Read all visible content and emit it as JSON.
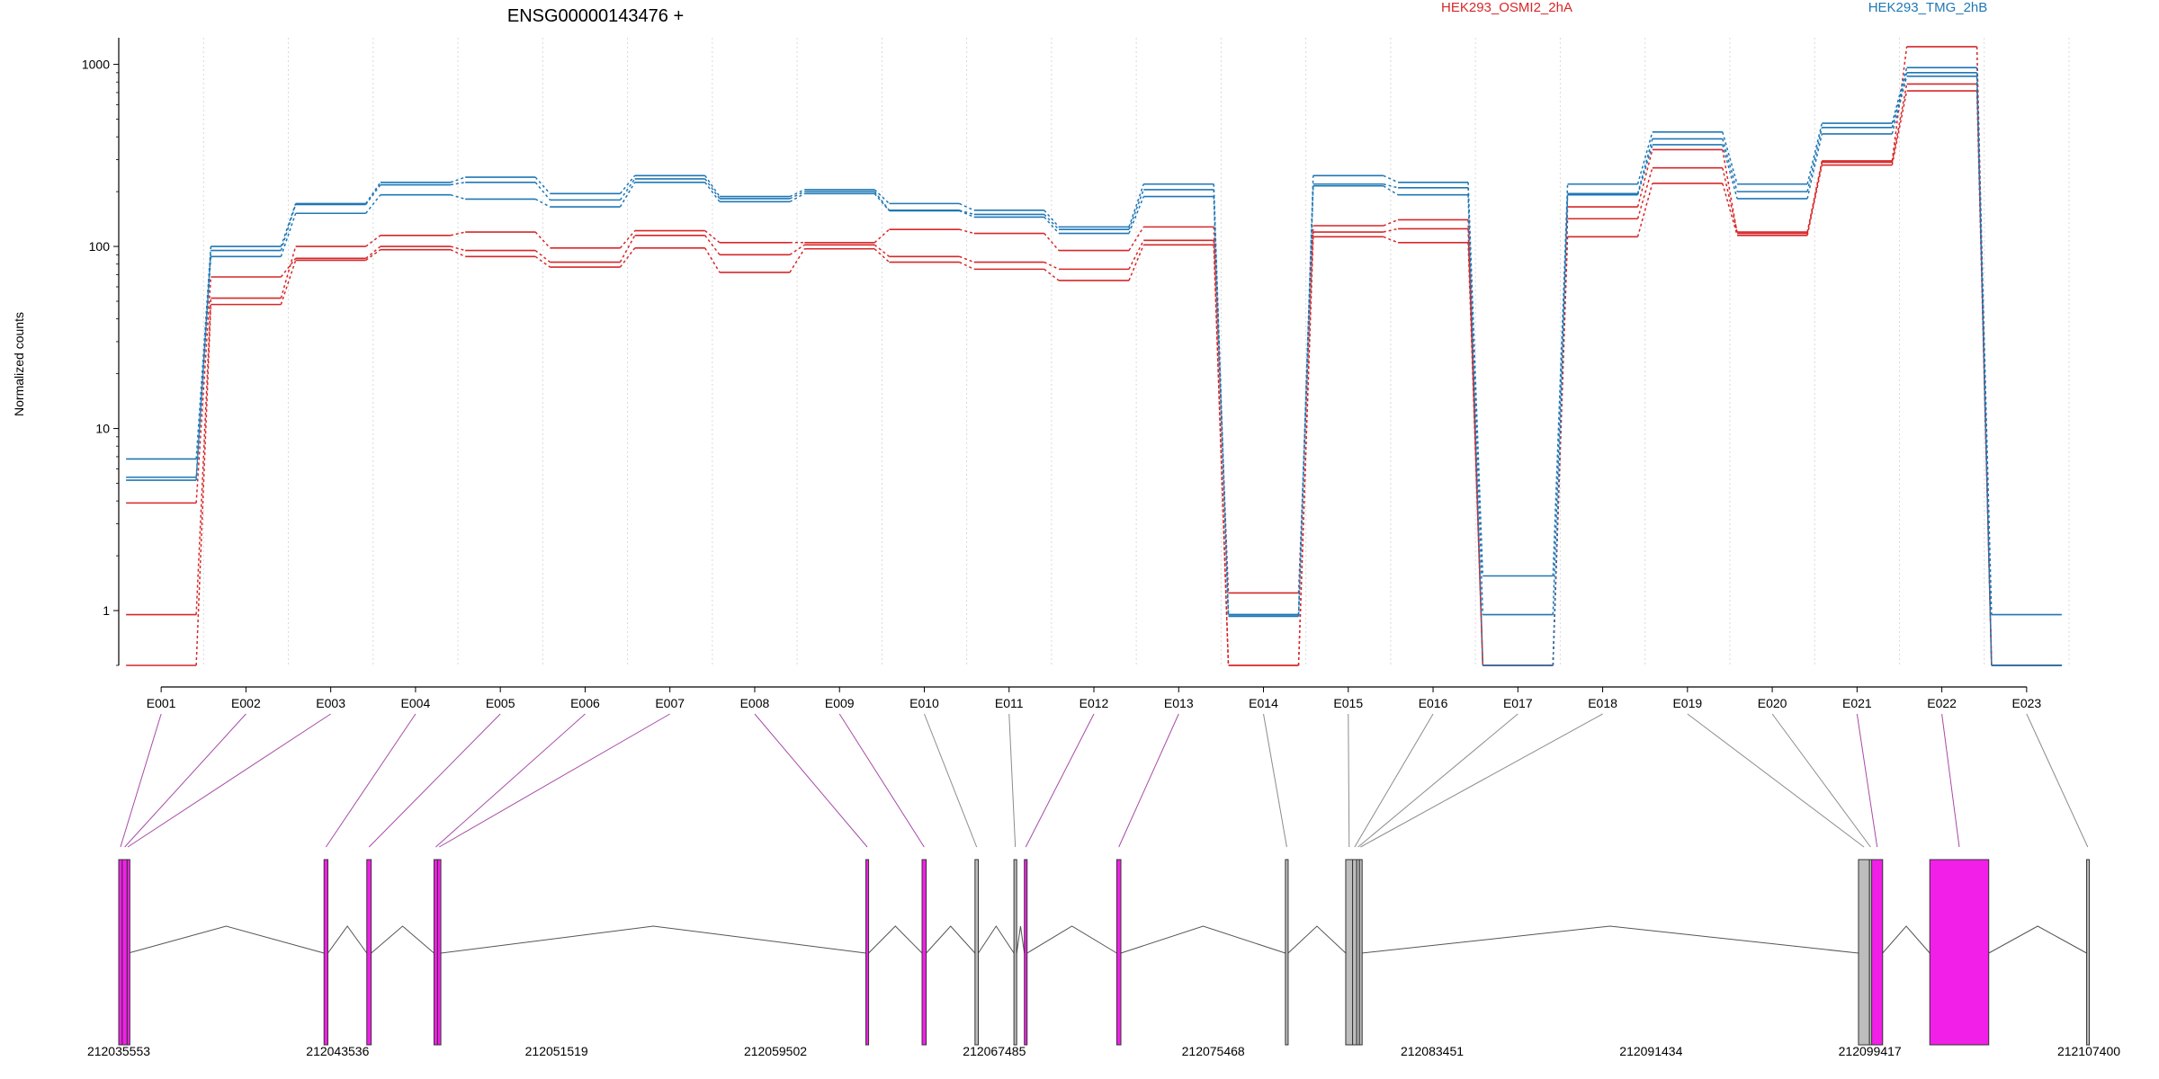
{
  "chart_data": {
    "type": "line",
    "title": "ENSG00000143476 +",
    "ylabel": "Normalized counts",
    "xlabel": "",
    "yscale": "log",
    "ylim": [
      0.5,
      1400
    ],
    "yticks": [
      "1",
      "10",
      "100",
      "1000"
    ],
    "grid": true,
    "legend_placement": "top",
    "categories": [
      "E001",
      "E002",
      "E003",
      "E004",
      "E005",
      "E006",
      "E007",
      "E008",
      "E009",
      "E010",
      "E011",
      "E012",
      "E013",
      "E014",
      "E015",
      "E016",
      "E017",
      "E018",
      "E019",
      "E020",
      "E021",
      "E022",
      "E023"
    ],
    "series": [
      {
        "name": "HEK293_OSMI2_2hA",
        "group": "OSMI2",
        "values": [
          0.95,
          52,
          100,
          115,
          120,
          98,
          122,
          105,
          105,
          124,
          118,
          95,
          128,
          1.25,
          130,
          140,
          0.5,
          142,
          270,
          120,
          295,
          1250,
          0.5
        ]
      },
      {
        "name": "",
        "group": "OSMI2",
        "values": [
          3.9,
          68,
          86,
          100,
          95,
          82,
          115,
          90,
          102,
          88,
          82,
          75,
          108,
          0.5,
          120,
          125,
          0.5,
          165,
          340,
          118,
          290,
          780,
          0.5
        ]
      },
      {
        "name": "",
        "group": "OSMI2",
        "values": [
          0.5,
          48,
          84,
          96,
          88,
          77,
          98,
          72,
          97,
          82,
          75,
          65,
          102,
          0.5,
          113,
          105,
          0.5,
          113,
          222,
          115,
          280,
          715,
          0.5
        ]
      },
      {
        "name": "HEK293_TMG_2hB",
        "group": "TMG",
        "values": [
          6.8,
          100,
          172,
          225,
          240,
          195,
          245,
          188,
          205,
          172,
          158,
          128,
          220,
          0.95,
          245,
          225,
          1.55,
          220,
          425,
          220,
          475,
          960,
          0.95
        ]
      },
      {
        "name": "",
        "group": "TMG",
        "values": [
          5.4,
          95,
          170,
          218,
          225,
          180,
          235,
          183,
          200,
          158,
          150,
          124,
          205,
          0.95,
          220,
          210,
          0.95,
          195,
          390,
          200,
          450,
          900,
          0.5
        ]
      },
      {
        "name": "",
        "group": "TMG",
        "values": [
          5.2,
          88,
          152,
          192,
          182,
          165,
          225,
          176,
          195,
          157,
          145,
          118,
          188,
          0.93,
          215,
          192,
          0.5,
          192,
          362,
          183,
          415,
          860,
          0.5
        ]
      }
    ],
    "colors": {
      "OSMI2": "#d62728",
      "TMG": "#1f77b4",
      "exon_coding": "#f21fe8",
      "exon_noncoding": "#bdbdbd"
    },
    "genomic_axis": {
      "start": 212035553,
      "end": 212107400,
      "tick_labels": [
        "212035553",
        "212043536",
        "212051519",
        "212059502",
        "212067485",
        "212075468",
        "212083451",
        "212091434",
        "212099417",
        "212107400"
      ]
    },
    "exons": [
      {
        "id": "E001",
        "start": 212035553,
        "end": 212035680,
        "type": "coding"
      },
      {
        "id": "E002",
        "start": 212035680,
        "end": 212035860,
        "type": "coding"
      },
      {
        "id": "E003",
        "start": 212035860,
        "end": 212035900,
        "type": "coding"
      },
      {
        "id": "E004",
        "start": 212043040,
        "end": 212043180,
        "type": "coding"
      },
      {
        "id": "E005",
        "start": 212044600,
        "end": 212044760,
        "type": "coding"
      },
      {
        "id": "E006",
        "start": 212047050,
        "end": 212047180,
        "type": "coding"
      },
      {
        "id": "E007",
        "start": 212047180,
        "end": 212047300,
        "type": "coding"
      },
      {
        "id": "E008",
        "start": 212062800,
        "end": 212062900,
        "type": "coding"
      },
      {
        "id": "E009",
        "start": 212064850,
        "end": 212065000,
        "type": "coding"
      },
      {
        "id": "E010",
        "start": 212066780,
        "end": 212066900,
        "type": "noncoding"
      },
      {
        "id": "E011",
        "start": 212068200,
        "end": 212068300,
        "type": "noncoding"
      },
      {
        "id": "E012",
        "start": 212068580,
        "end": 212068680,
        "type": "coding"
      },
      {
        "id": "E013",
        "start": 212071950,
        "end": 212072100,
        "type": "coding"
      },
      {
        "id": "E014",
        "start": 212078100,
        "end": 212078200,
        "type": "noncoding"
      },
      {
        "id": "E015",
        "start": 212080300,
        "end": 212080550,
        "type": "noncoding"
      },
      {
        "id": "E016",
        "start": 212080550,
        "end": 212080700,
        "type": "noncoding"
      },
      {
        "id": "E017",
        "start": 212080700,
        "end": 212080800,
        "type": "noncoding"
      },
      {
        "id": "E018",
        "start": 212080800,
        "end": 212080880,
        "type": "noncoding"
      },
      {
        "id": "E019",
        "start": 212099000,
        "end": 212099400,
        "type": "noncoding"
      },
      {
        "id": "E020",
        "start": 212099400,
        "end": 212099480,
        "type": "noncoding"
      },
      {
        "id": "E021",
        "start": 212099480,
        "end": 212099880,
        "type": "coding"
      },
      {
        "id": "E022",
        "start": 212101600,
        "end": 212103750,
        "type": "coding"
      },
      {
        "id": "E023",
        "start": 212107320,
        "end": 212107400,
        "type": "noncoding"
      }
    ]
  }
}
